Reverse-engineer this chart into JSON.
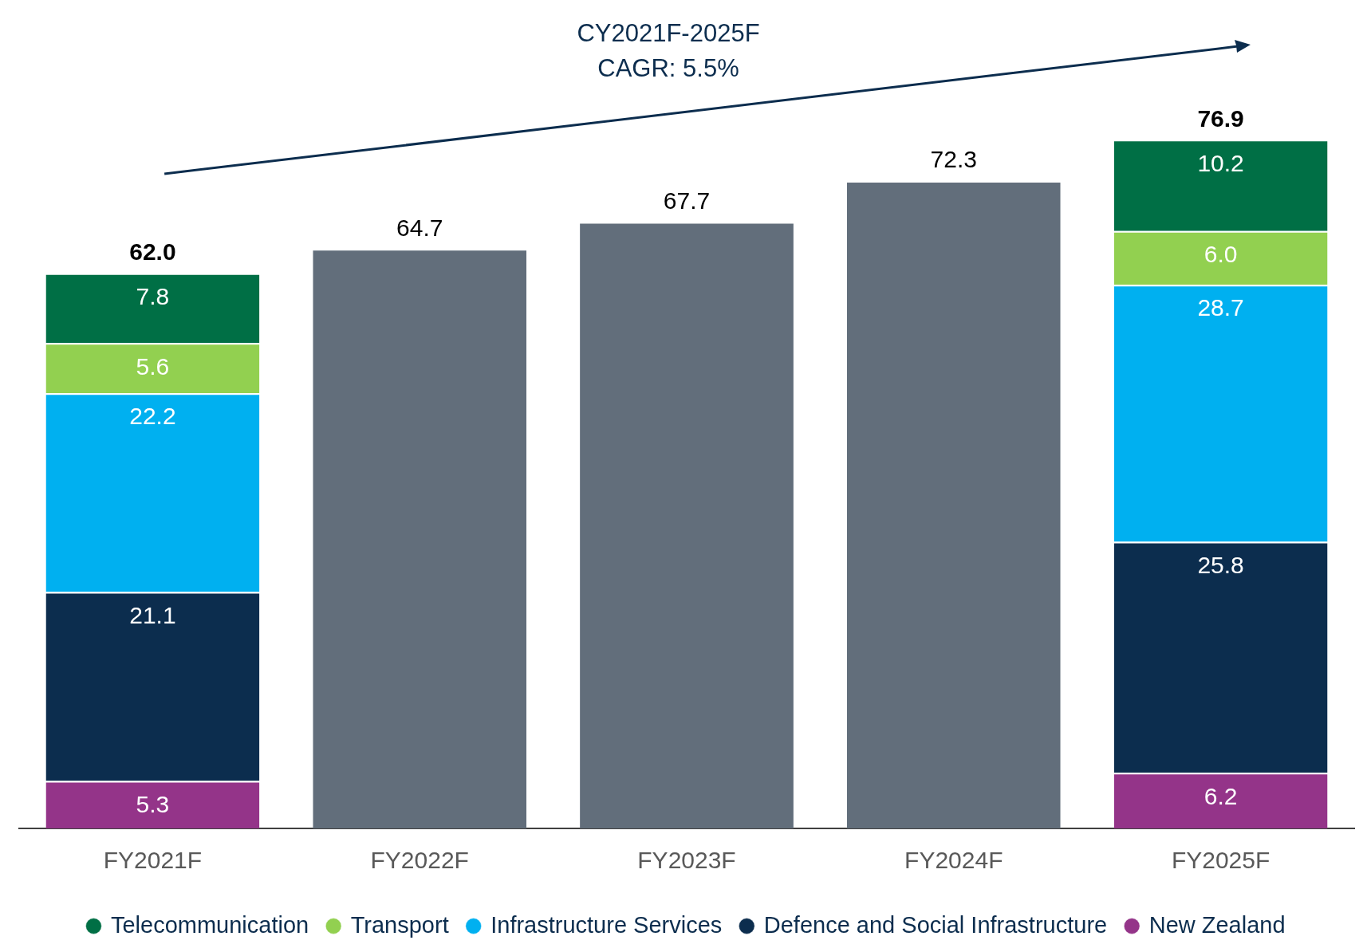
{
  "chart_data": {
    "type": "bar",
    "stacked": true,
    "categories": [
      "FY2021F",
      "FY2022F",
      "FY2023F",
      "FY2024F",
      "FY2025F"
    ],
    "series": [
      {
        "name": "New Zealand",
        "color": "#943489",
        "values": [
          5.3,
          null,
          null,
          null,
          6.2
        ],
        "value_labels": [
          "5.3",
          null,
          null,
          null,
          "6.2"
        ]
      },
      {
        "name": "Defence and Social Infrastructure",
        "color": "#0c2d4e",
        "values": [
          21.1,
          null,
          null,
          null,
          25.8
        ],
        "value_labels": [
          "21.1",
          null,
          null,
          null,
          "25.8"
        ]
      },
      {
        "name": "Infrastructure Services",
        "color": "#00b0f0",
        "values": [
          22.2,
          null,
          null,
          null,
          28.7
        ],
        "value_labels": [
          "22.2",
          null,
          null,
          null,
          "28.7"
        ]
      },
      {
        "name": "Transport",
        "color": "#92d050",
        "values": [
          5.6,
          null,
          null,
          null,
          6.0
        ],
        "value_labels": [
          "5.6",
          null,
          null,
          null,
          "6.0"
        ]
      },
      {
        "name": "Telecommunication",
        "color": "#006f45",
        "values": [
          7.8,
          null,
          null,
          null,
          10.2
        ],
        "value_labels": [
          "7.8",
          null,
          null,
          null,
          "10.2"
        ]
      },
      {
        "color": "#626e7b",
        "values": [
          null,
          64.7,
          67.7,
          72.3,
          null
        ]
      }
    ],
    "totals": [
      "62.0",
      "64.7",
      "67.7",
      "72.3",
      "76.9"
    ],
    "annotations": [
      "CY2021F-2025F",
      "CAGR: 5.5%"
    ],
    "legend": "bottom",
    "grid": false
  }
}
